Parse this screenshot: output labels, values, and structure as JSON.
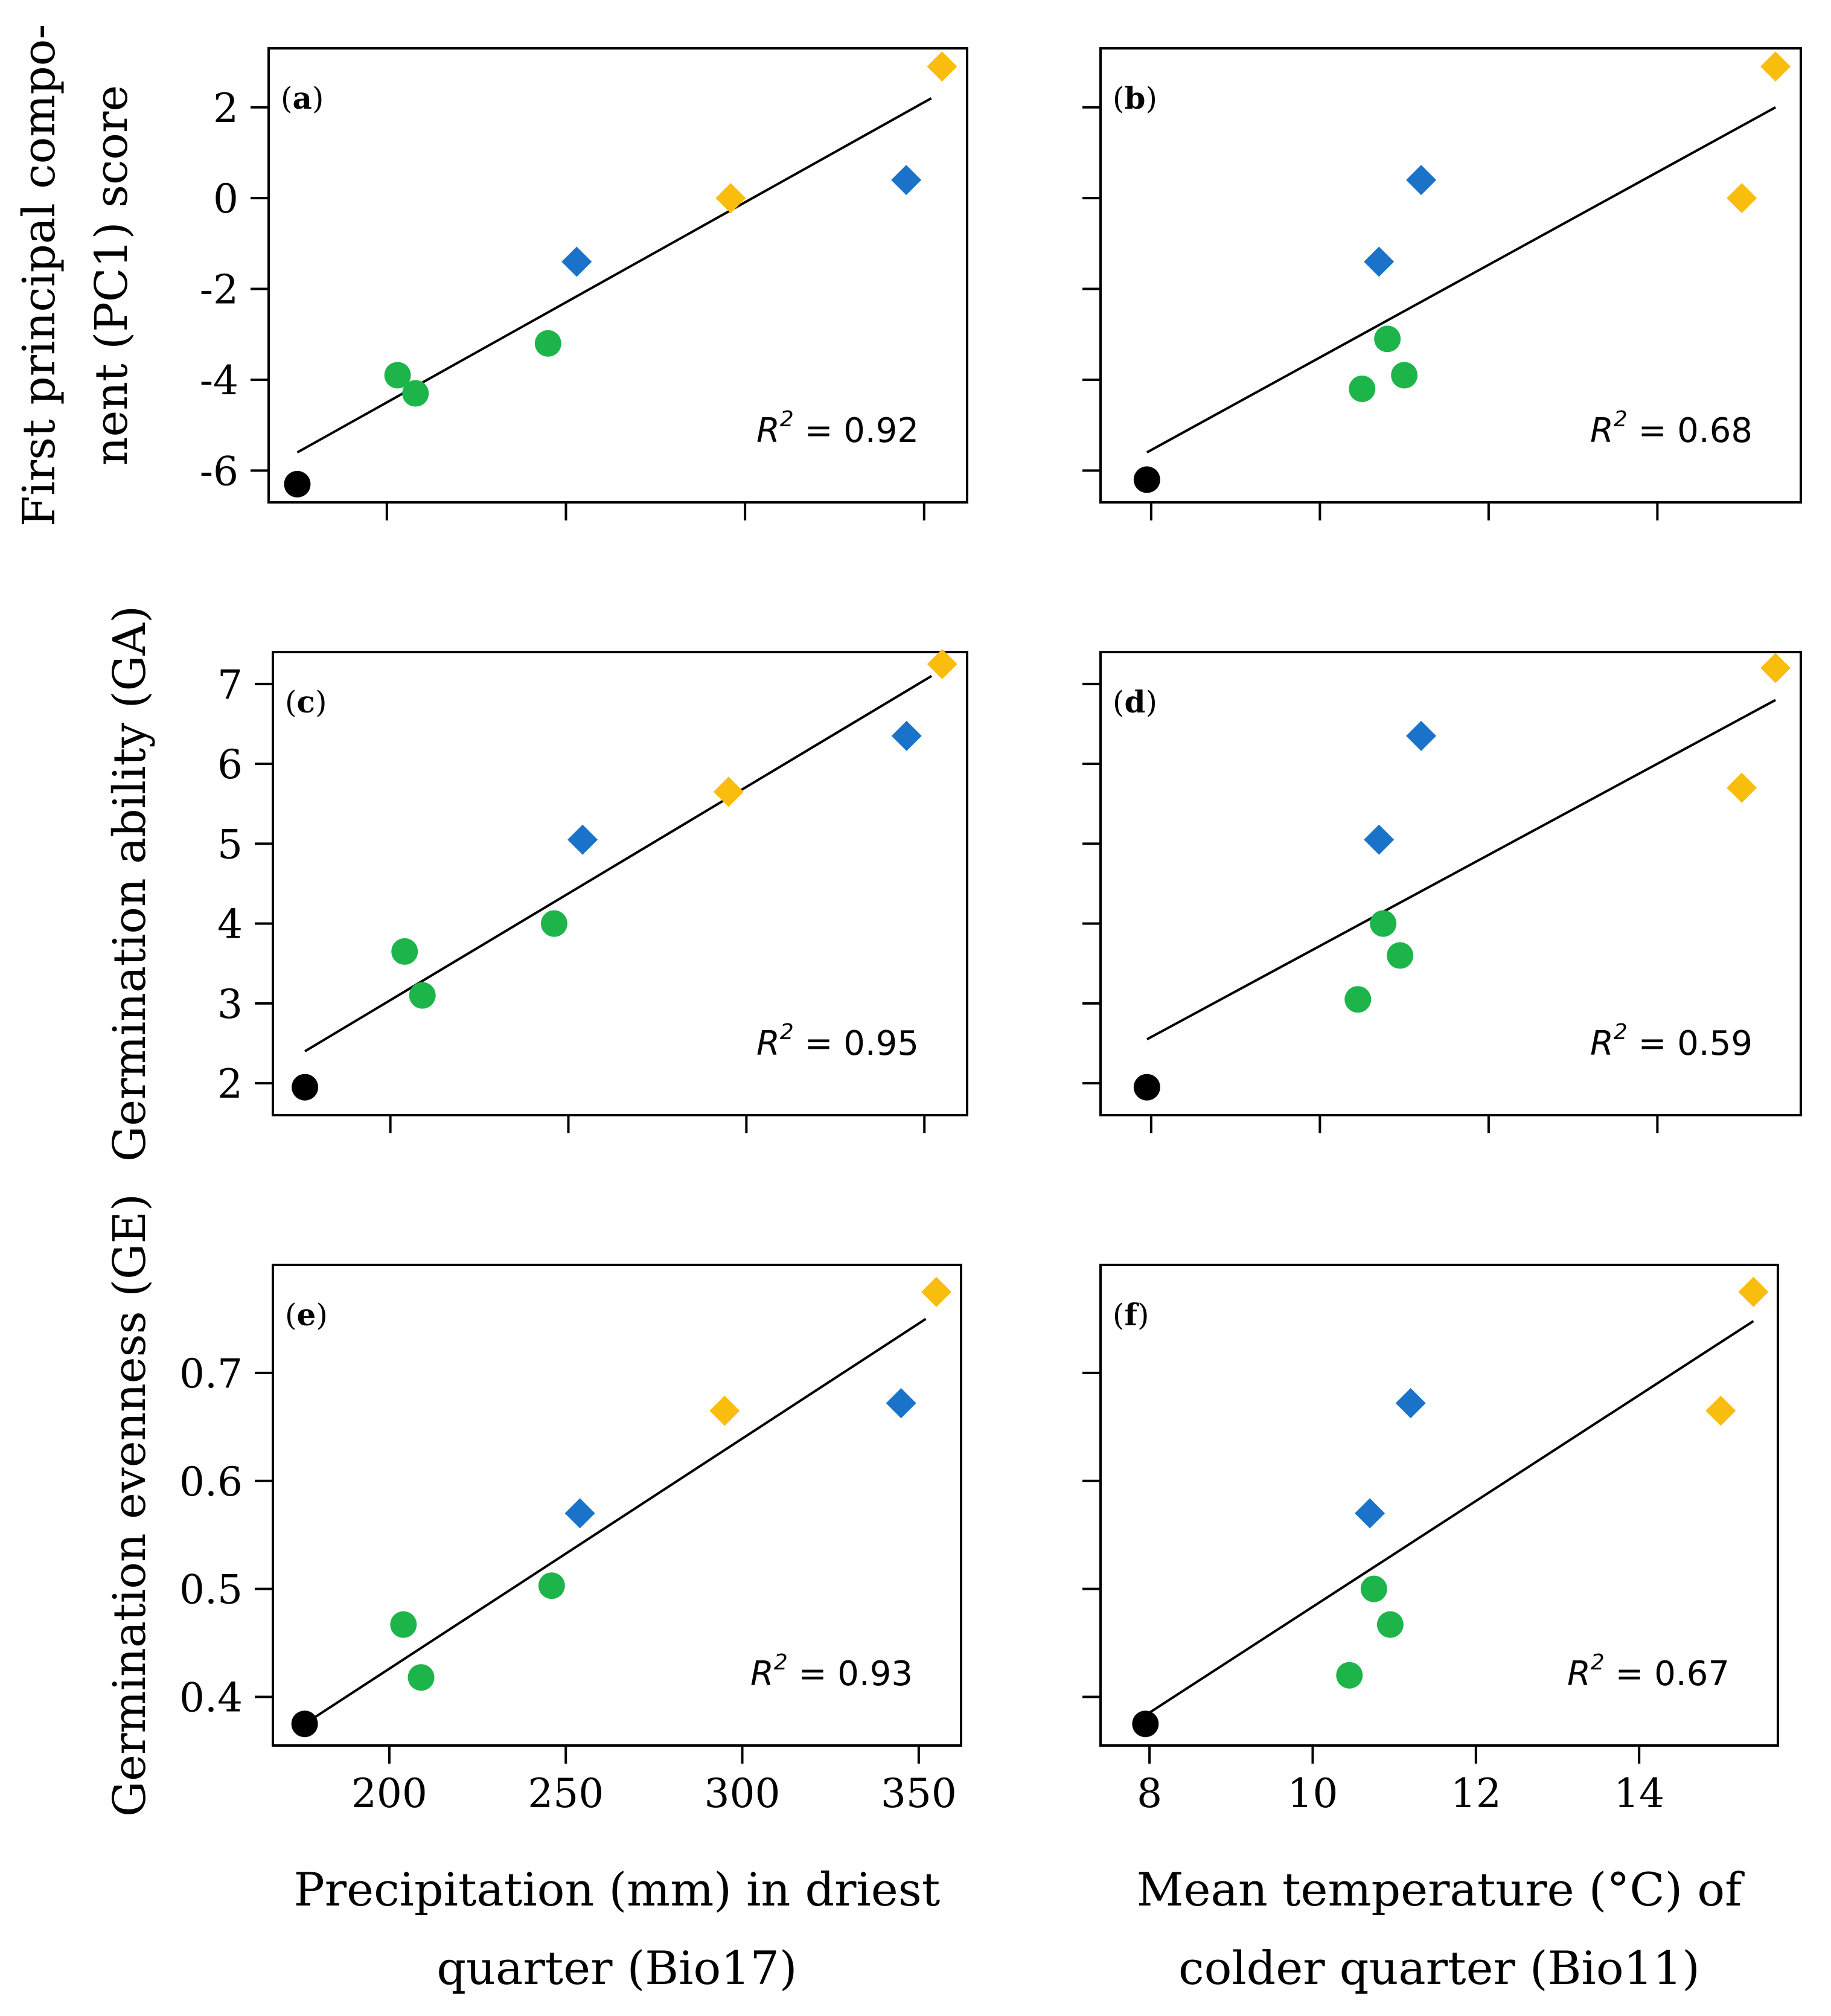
{
  "colors": {
    "black": "#000000",
    "green": "#1db54a",
    "blue": "#1a73c8",
    "yellow": "#f9bd0d"
  },
  "chart_data": [
    {
      "id": "a",
      "type": "scatter",
      "panel_label": "a",
      "xlabel": "",
      "ylabel_lines": [
        "First principal compo-",
        "nent (PC1) score"
      ],
      "xlim": [
        167,
        362
      ],
      "ylim": [
        -6.7,
        3.3
      ],
      "xticks": [
        200,
        250,
        300,
        350
      ],
      "show_xtick_labels": false,
      "yticks": [
        -6,
        -4,
        -2,
        0,
        2
      ],
      "ytick_labels": [
        "-6",
        "-4",
        "-2",
        "0",
        "2"
      ],
      "show_ytick_labels": true,
      "r2": "0.92",
      "fit": {
        "x": [
          175,
          352
        ],
        "y": [
          -5.6,
          2.2
        ]
      },
      "points": [
        {
          "x": 175,
          "y": -6.3,
          "shape": "circle",
          "color": "black"
        },
        {
          "x": 203,
          "y": -3.9,
          "shape": "circle",
          "color": "green"
        },
        {
          "x": 208,
          "y": -4.3,
          "shape": "circle",
          "color": "green"
        },
        {
          "x": 245,
          "y": -3.2,
          "shape": "circle",
          "color": "green"
        },
        {
          "x": 253,
          "y": -1.4,
          "shape": "diamond",
          "color": "blue"
        },
        {
          "x": 296,
          "y": 0.0,
          "shape": "diamond",
          "color": "yellow"
        },
        {
          "x": 345,
          "y": 0.4,
          "shape": "diamond",
          "color": "blue"
        },
        {
          "x": 355,
          "y": 2.9,
          "shape": "diamond",
          "color": "yellow"
        }
      ]
    },
    {
      "id": "b",
      "type": "scatter",
      "panel_label": "b",
      "xlabel": "",
      "ylabel_lines": [],
      "xlim": [
        7.4,
        15.7
      ],
      "ylim": [
        -6.7,
        3.3
      ],
      "xticks": [
        8,
        10,
        12,
        14
      ],
      "show_xtick_labels": false,
      "yticks": [
        -6,
        -4,
        -2,
        0,
        2
      ],
      "ytick_labels": [
        "-6",
        "-4",
        "-2",
        "0",
        "2"
      ],
      "show_ytick_labels": false,
      "r2": "0.68",
      "fit": {
        "x": [
          7.95,
          15.4
        ],
        "y": [
          -5.6,
          2.0
        ]
      },
      "points": [
        {
          "x": 7.95,
          "y": -6.2,
          "shape": "circle",
          "color": "black"
        },
        {
          "x": 10.5,
          "y": -4.2,
          "shape": "circle",
          "color": "green"
        },
        {
          "x": 10.8,
          "y": -3.1,
          "shape": "circle",
          "color": "green"
        },
        {
          "x": 11.0,
          "y": -3.9,
          "shape": "circle",
          "color": "green"
        },
        {
          "x": 10.7,
          "y": -1.4,
          "shape": "diamond",
          "color": "blue"
        },
        {
          "x": 11.2,
          "y": 0.4,
          "shape": "diamond",
          "color": "blue"
        },
        {
          "x": 15.0,
          "y": 0.0,
          "shape": "diamond",
          "color": "yellow"
        },
        {
          "x": 15.4,
          "y": 2.9,
          "shape": "diamond",
          "color": "yellow"
        }
      ]
    },
    {
      "id": "c",
      "type": "scatter",
      "panel_label": "c",
      "xlabel": "",
      "ylabel_lines": [
        "Germination ability (GA)"
      ],
      "xlim": [
        167,
        362
      ],
      "ylim": [
        1.6,
        7.4
      ],
      "xticks": [
        200,
        250,
        300,
        350
      ],
      "show_xtick_labels": false,
      "yticks": [
        2,
        3,
        4,
        5,
        6,
        7
      ],
      "ytick_labels": [
        "2",
        "3",
        "4",
        "5",
        "6",
        "7"
      ],
      "show_ytick_labels": true,
      "r2": "0.95",
      "fit": {
        "x": [
          176,
          352
        ],
        "y": [
          2.4,
          7.1
        ]
      },
      "points": [
        {
          "x": 176,
          "y": 1.95,
          "shape": "circle",
          "color": "black"
        },
        {
          "x": 204,
          "y": 3.65,
          "shape": "circle",
          "color": "green"
        },
        {
          "x": 209,
          "y": 3.1,
          "shape": "circle",
          "color": "green"
        },
        {
          "x": 246,
          "y": 4.0,
          "shape": "circle",
          "color": "green"
        },
        {
          "x": 254,
          "y": 5.05,
          "shape": "diamond",
          "color": "blue"
        },
        {
          "x": 295,
          "y": 5.65,
          "shape": "diamond",
          "color": "yellow"
        },
        {
          "x": 345,
          "y": 6.35,
          "shape": "diamond",
          "color": "blue"
        },
        {
          "x": 355,
          "y": 7.25,
          "shape": "diamond",
          "color": "yellow"
        }
      ]
    },
    {
      "id": "d",
      "type": "scatter",
      "panel_label": "d",
      "xlabel": "",
      "ylabel_lines": [],
      "xlim": [
        7.4,
        15.7
      ],
      "ylim": [
        1.6,
        7.4
      ],
      "xticks": [
        8,
        10,
        12,
        14
      ],
      "show_xtick_labels": false,
      "yticks": [
        2,
        3,
        4,
        5,
        6,
        7
      ],
      "ytick_labels": [
        "2",
        "3",
        "4",
        "5",
        "6",
        "7"
      ],
      "show_ytick_labels": false,
      "r2": "0.59",
      "fit": {
        "x": [
          7.95,
          15.4
        ],
        "y": [
          2.55,
          6.8
        ]
      },
      "points": [
        {
          "x": 7.95,
          "y": 1.95,
          "shape": "circle",
          "color": "black"
        },
        {
          "x": 10.45,
          "y": 3.05,
          "shape": "circle",
          "color": "green"
        },
        {
          "x": 10.75,
          "y": 4.0,
          "shape": "circle",
          "color": "green"
        },
        {
          "x": 10.95,
          "y": 3.6,
          "shape": "circle",
          "color": "green"
        },
        {
          "x": 10.7,
          "y": 5.05,
          "shape": "diamond",
          "color": "blue"
        },
        {
          "x": 11.2,
          "y": 6.35,
          "shape": "diamond",
          "color": "blue"
        },
        {
          "x": 15.0,
          "y": 5.7,
          "shape": "diamond",
          "color": "yellow"
        },
        {
          "x": 15.4,
          "y": 7.2,
          "shape": "diamond",
          "color": "yellow"
        }
      ]
    },
    {
      "id": "e",
      "type": "scatter",
      "panel_label": "e",
      "xlabel_lines": [
        "Precipitation (mm) in driest",
        "quarter (Bio17)"
      ],
      "ylabel_lines": [
        "Germination evenness (GE)"
      ],
      "xlim": [
        167,
        362
      ],
      "ylim": [
        0.355,
        0.8
      ],
      "xticks": [
        200,
        250,
        300,
        350
      ],
      "xtick_labels": [
        "200",
        "250",
        "300",
        "350"
      ],
      "show_xtick_labels": true,
      "yticks": [
        0.4,
        0.5,
        0.6,
        0.7
      ],
      "ytick_labels": [
        "0.4",
        "0.5",
        "0.6",
        "0.7"
      ],
      "show_ytick_labels": true,
      "r2": "0.93",
      "fit": {
        "x": [
          176,
          352
        ],
        "y": [
          0.375,
          0.75
        ]
      },
      "points": [
        {
          "x": 176,
          "y": 0.375,
          "shape": "circle",
          "color": "black"
        },
        {
          "x": 204,
          "y": 0.467,
          "shape": "circle",
          "color": "green"
        },
        {
          "x": 209,
          "y": 0.418,
          "shape": "circle",
          "color": "green"
        },
        {
          "x": 246,
          "y": 0.503,
          "shape": "circle",
          "color": "green"
        },
        {
          "x": 254,
          "y": 0.57,
          "shape": "diamond",
          "color": "blue"
        },
        {
          "x": 295,
          "y": 0.665,
          "shape": "diamond",
          "color": "yellow"
        },
        {
          "x": 345,
          "y": 0.672,
          "shape": "diamond",
          "color": "blue"
        },
        {
          "x": 355,
          "y": 0.775,
          "shape": "diamond",
          "color": "yellow"
        }
      ]
    },
    {
      "id": "f",
      "type": "scatter",
      "panel_label": "f",
      "xlabel_lines": [
        "Mean temperature (°C) of",
        "colder quarter (Bio11)"
      ],
      "ylabel_lines": [],
      "xlim": [
        7.4,
        15.7
      ],
      "ylim": [
        0.355,
        0.8
      ],
      "xticks": [
        8,
        10,
        12,
        14
      ],
      "xtick_labels": [
        "8",
        "10",
        "12",
        "14"
      ],
      "show_xtick_labels": true,
      "yticks": [
        0.4,
        0.5,
        0.6,
        0.7
      ],
      "ytick_labels": [
        "0.4",
        "0.5",
        "0.6",
        "0.7"
      ],
      "show_ytick_labels": false,
      "r2": "0.67",
      "fit": {
        "x": [
          7.95,
          15.4
        ],
        "y": [
          0.383,
          0.748
        ]
      },
      "points": [
        {
          "x": 7.95,
          "y": 0.375,
          "shape": "circle",
          "color": "black"
        },
        {
          "x": 10.45,
          "y": 0.42,
          "shape": "circle",
          "color": "green"
        },
        {
          "x": 10.75,
          "y": 0.5,
          "shape": "circle",
          "color": "green"
        },
        {
          "x": 10.95,
          "y": 0.467,
          "shape": "circle",
          "color": "green"
        },
        {
          "x": 10.7,
          "y": 0.57,
          "shape": "diamond",
          "color": "blue"
        },
        {
          "x": 11.2,
          "y": 0.672,
          "shape": "diamond",
          "color": "blue"
        },
        {
          "x": 15.0,
          "y": 0.665,
          "shape": "diamond",
          "color": "yellow"
        },
        {
          "x": 15.4,
          "y": 0.775,
          "shape": "diamond",
          "color": "yellow"
        }
      ]
    }
  ]
}
